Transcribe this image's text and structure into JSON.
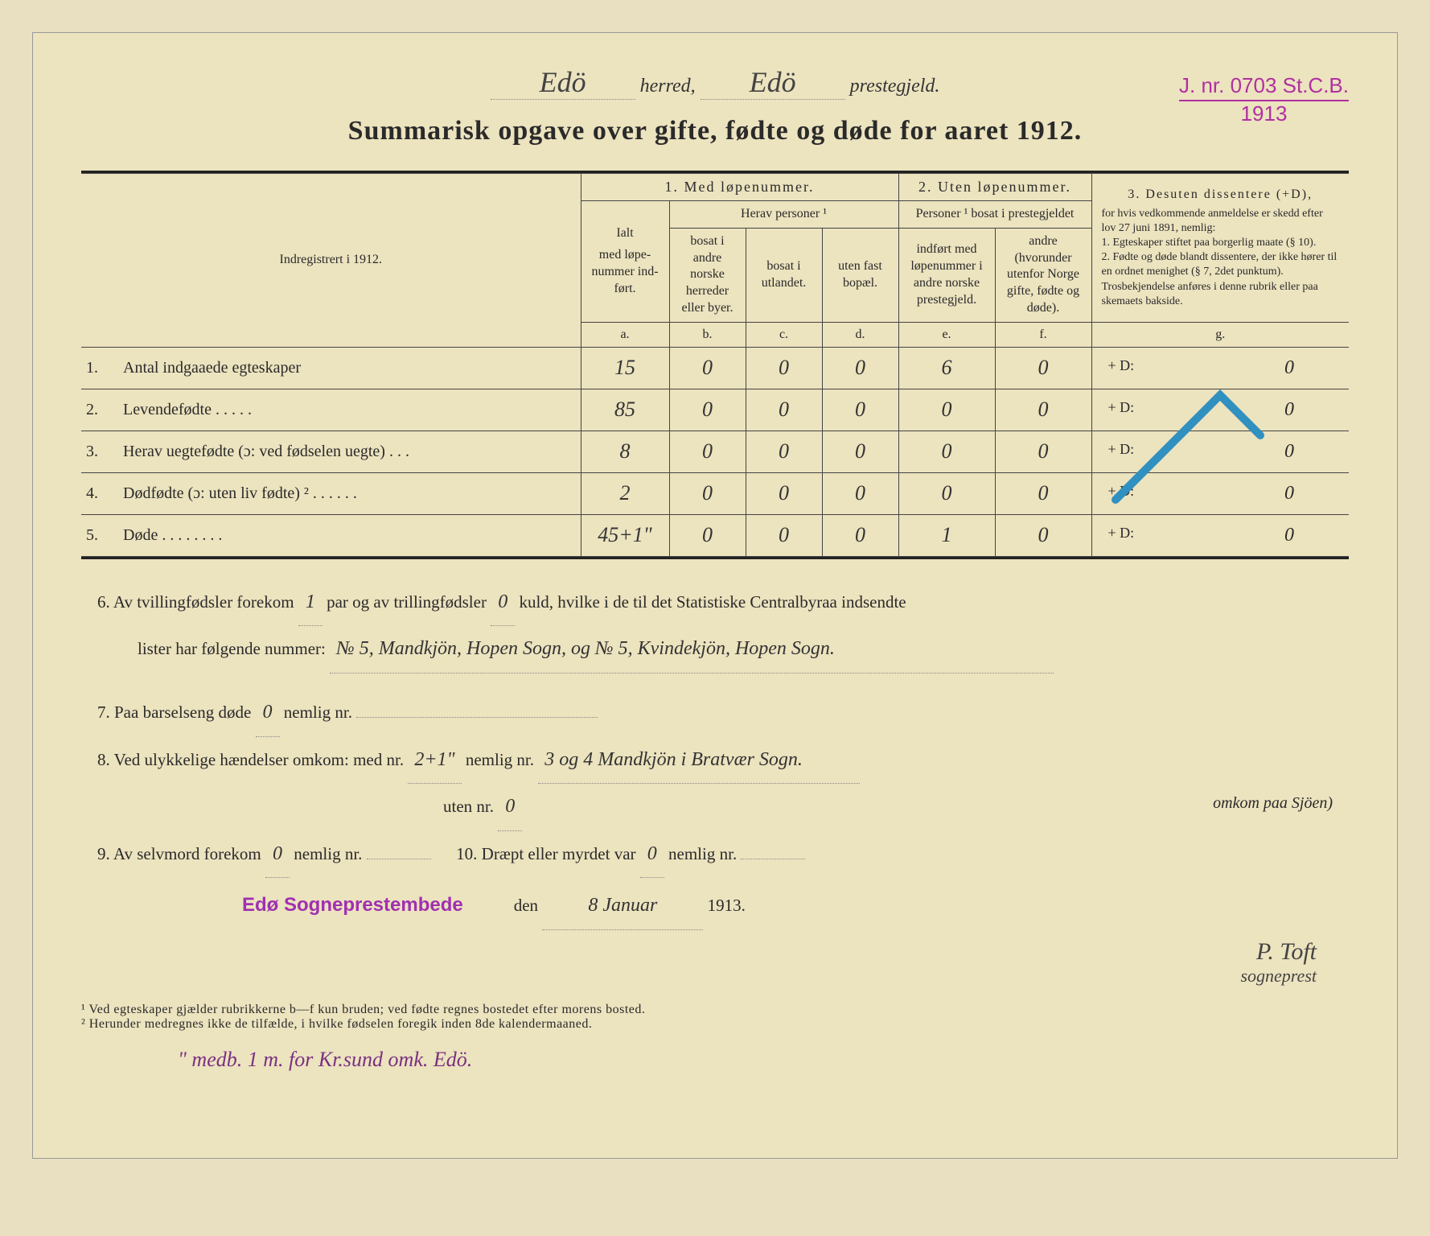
{
  "header": {
    "herred_hw": "Edö",
    "herred_label": "herred,",
    "prestegjeld_hw": "Edö",
    "prestegjeld_label": "prestegjeld."
  },
  "stamp": {
    "line1": "J. nr. 0703 St.C.B.",
    "line2": "1913"
  },
  "title": "Summarisk opgave over gifte, fødte og døde for aaret 1912.",
  "table": {
    "left_header": "Indregistrert i 1912.",
    "sec1_title": "1.  Med løpenummer.",
    "sec2_title": "2. Uten løpenummer.",
    "sec3_title": "3. Desuten dissentere (+D),",
    "sec1_ialt": "Ialt",
    "sec1_herav": "Herav personer ¹",
    "sec2_sub": "Personer ¹ bosat i prestegjeldet",
    "sec3_text": "for hvis vedkommende anmeldelse er skedd efter lov 27 juni 1891, nemlig:\n1. Egteskaper stiftet paa borgerlig maate (§ 10).\n2. Fødte og døde blandt dissentere, der ikke hører til en ordnet menighet (§ 7, 2det punktum).\nTrosbekjendelse anføres i denne rubrik eller paa skemaets bakside.",
    "col_a": "med løpe-nummer ind-ført.",
    "col_b": "bosat i andre norske herreder eller byer.",
    "col_c": "bosat i utlandet.",
    "col_d": "uten fast bopæl.",
    "col_e": "indført med løpenummer i andre norske prestegjeld.",
    "col_f": "andre (hvorunder utenfor Norge gifte, fødte og døde).",
    "let_a": "a.",
    "let_b": "b.",
    "let_c": "c.",
    "let_d": "d.",
    "let_e": "e.",
    "let_f": "f.",
    "let_g": "g.",
    "rows": [
      {
        "n": "1.",
        "label": "Antal indgaaede egteskaper",
        "a": "15",
        "b": "0",
        "c": "0",
        "d": "0",
        "e": "6",
        "f": "0",
        "g": "+ D:",
        "gv": "0"
      },
      {
        "n": "2.",
        "label": "Levendefødte   .   .   .   .   .",
        "a": "85",
        "b": "0",
        "c": "0",
        "d": "0",
        "e": "0",
        "f": "0",
        "g": "+ D:",
        "gv": "0"
      },
      {
        "n": "3.",
        "label": "Herav uegtefødte (ɔ: ved fødselen uegte)   .   .   .",
        "a": "8",
        "b": "0",
        "c": "0",
        "d": "0",
        "e": "0",
        "f": "0",
        "g": "+ D:",
        "gv": "0"
      },
      {
        "n": "4.",
        "label": "Dødfødte (ɔ: uten liv fødte) ²   .   .   .   .   .   .",
        "a": "2",
        "b": "0",
        "c": "0",
        "d": "0",
        "e": "0",
        "f": "0",
        "g": "+ D:",
        "gv": "0"
      },
      {
        "n": "5.",
        "label": "Døde   .   .   .   .   .   .   .   .",
        "a": "45+1\"",
        "b": "0",
        "c": "0",
        "d": "0",
        "e": "1",
        "f": "0",
        "g": "+ D:",
        "gv": "0"
      }
    ]
  },
  "body": {
    "l6a": "6.    Av tvillingfødsler forekom",
    "l6_twins": "1",
    "l6b": "par og av trillingfødsler",
    "l6_trip": "0",
    "l6c": "kuld, hvilke i de til det Statistiske Centralbyraa indsendte",
    "l6d": "lister har følgende nummer:",
    "l6_hw": "№ 5, Mandkjön, Hopen Sogn, og № 5, Kvindekjön, Hopen Sogn.",
    "l7a": "7.    Paa barselseng døde",
    "l7_v": "0",
    "l7b": "nemlig nr.",
    "l8a": "8.    Ved ulykkelige hændelser omkom:  med nr.",
    "l8_v1": "2+1\"",
    "l8b": "nemlig nr.",
    "l8_hw": "3 og 4 Mandkjön i Bratvær Sogn.",
    "l8_paren": "omkom paa Sjöen)",
    "l8c": "uten nr.",
    "l8_v2": "0",
    "l9a": "9.    Av selvmord forekom",
    "l9_v": "0",
    "l9b": "nemlig nr.",
    "l10a": "10.    Dræpt eller myrdet var",
    "l10_v": "0",
    "l10b": "nemlig nr.",
    "office_stamp": "Edø Sogneprestembede",
    "den": "den",
    "date_hw": "8 Januar",
    "year": "1913.",
    "signature": "P. Toft",
    "sig_title": "sogneprest"
  },
  "footnotes": {
    "f1": "¹ Ved egteskaper gjælder rubrikkerne b—f kun bruden; ved fødte regnes bostedet efter morens bosted.",
    "f2": "² Herunder medregnes ikke de tilfælde, i hvilke fødselen foregik inden 8de kalendermaaned."
  },
  "bottom_hw": "\" medb. 1 m. for Kr.sund omk. Edö."
}
